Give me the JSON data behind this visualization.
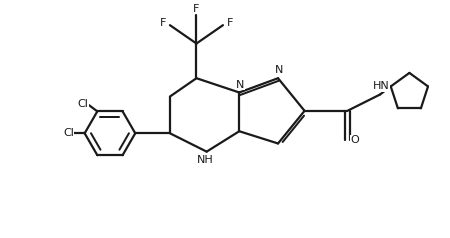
{
  "background_color": "#ffffff",
  "line_color": "#1a1a1a",
  "line_width": 1.6,
  "figsize": [
    4.5,
    2.38
  ],
  "dpi": 100,
  "xlim": [
    0,
    10.0
  ],
  "ylim": [
    0,
    5.8
  ],
  "fs": 8.0
}
